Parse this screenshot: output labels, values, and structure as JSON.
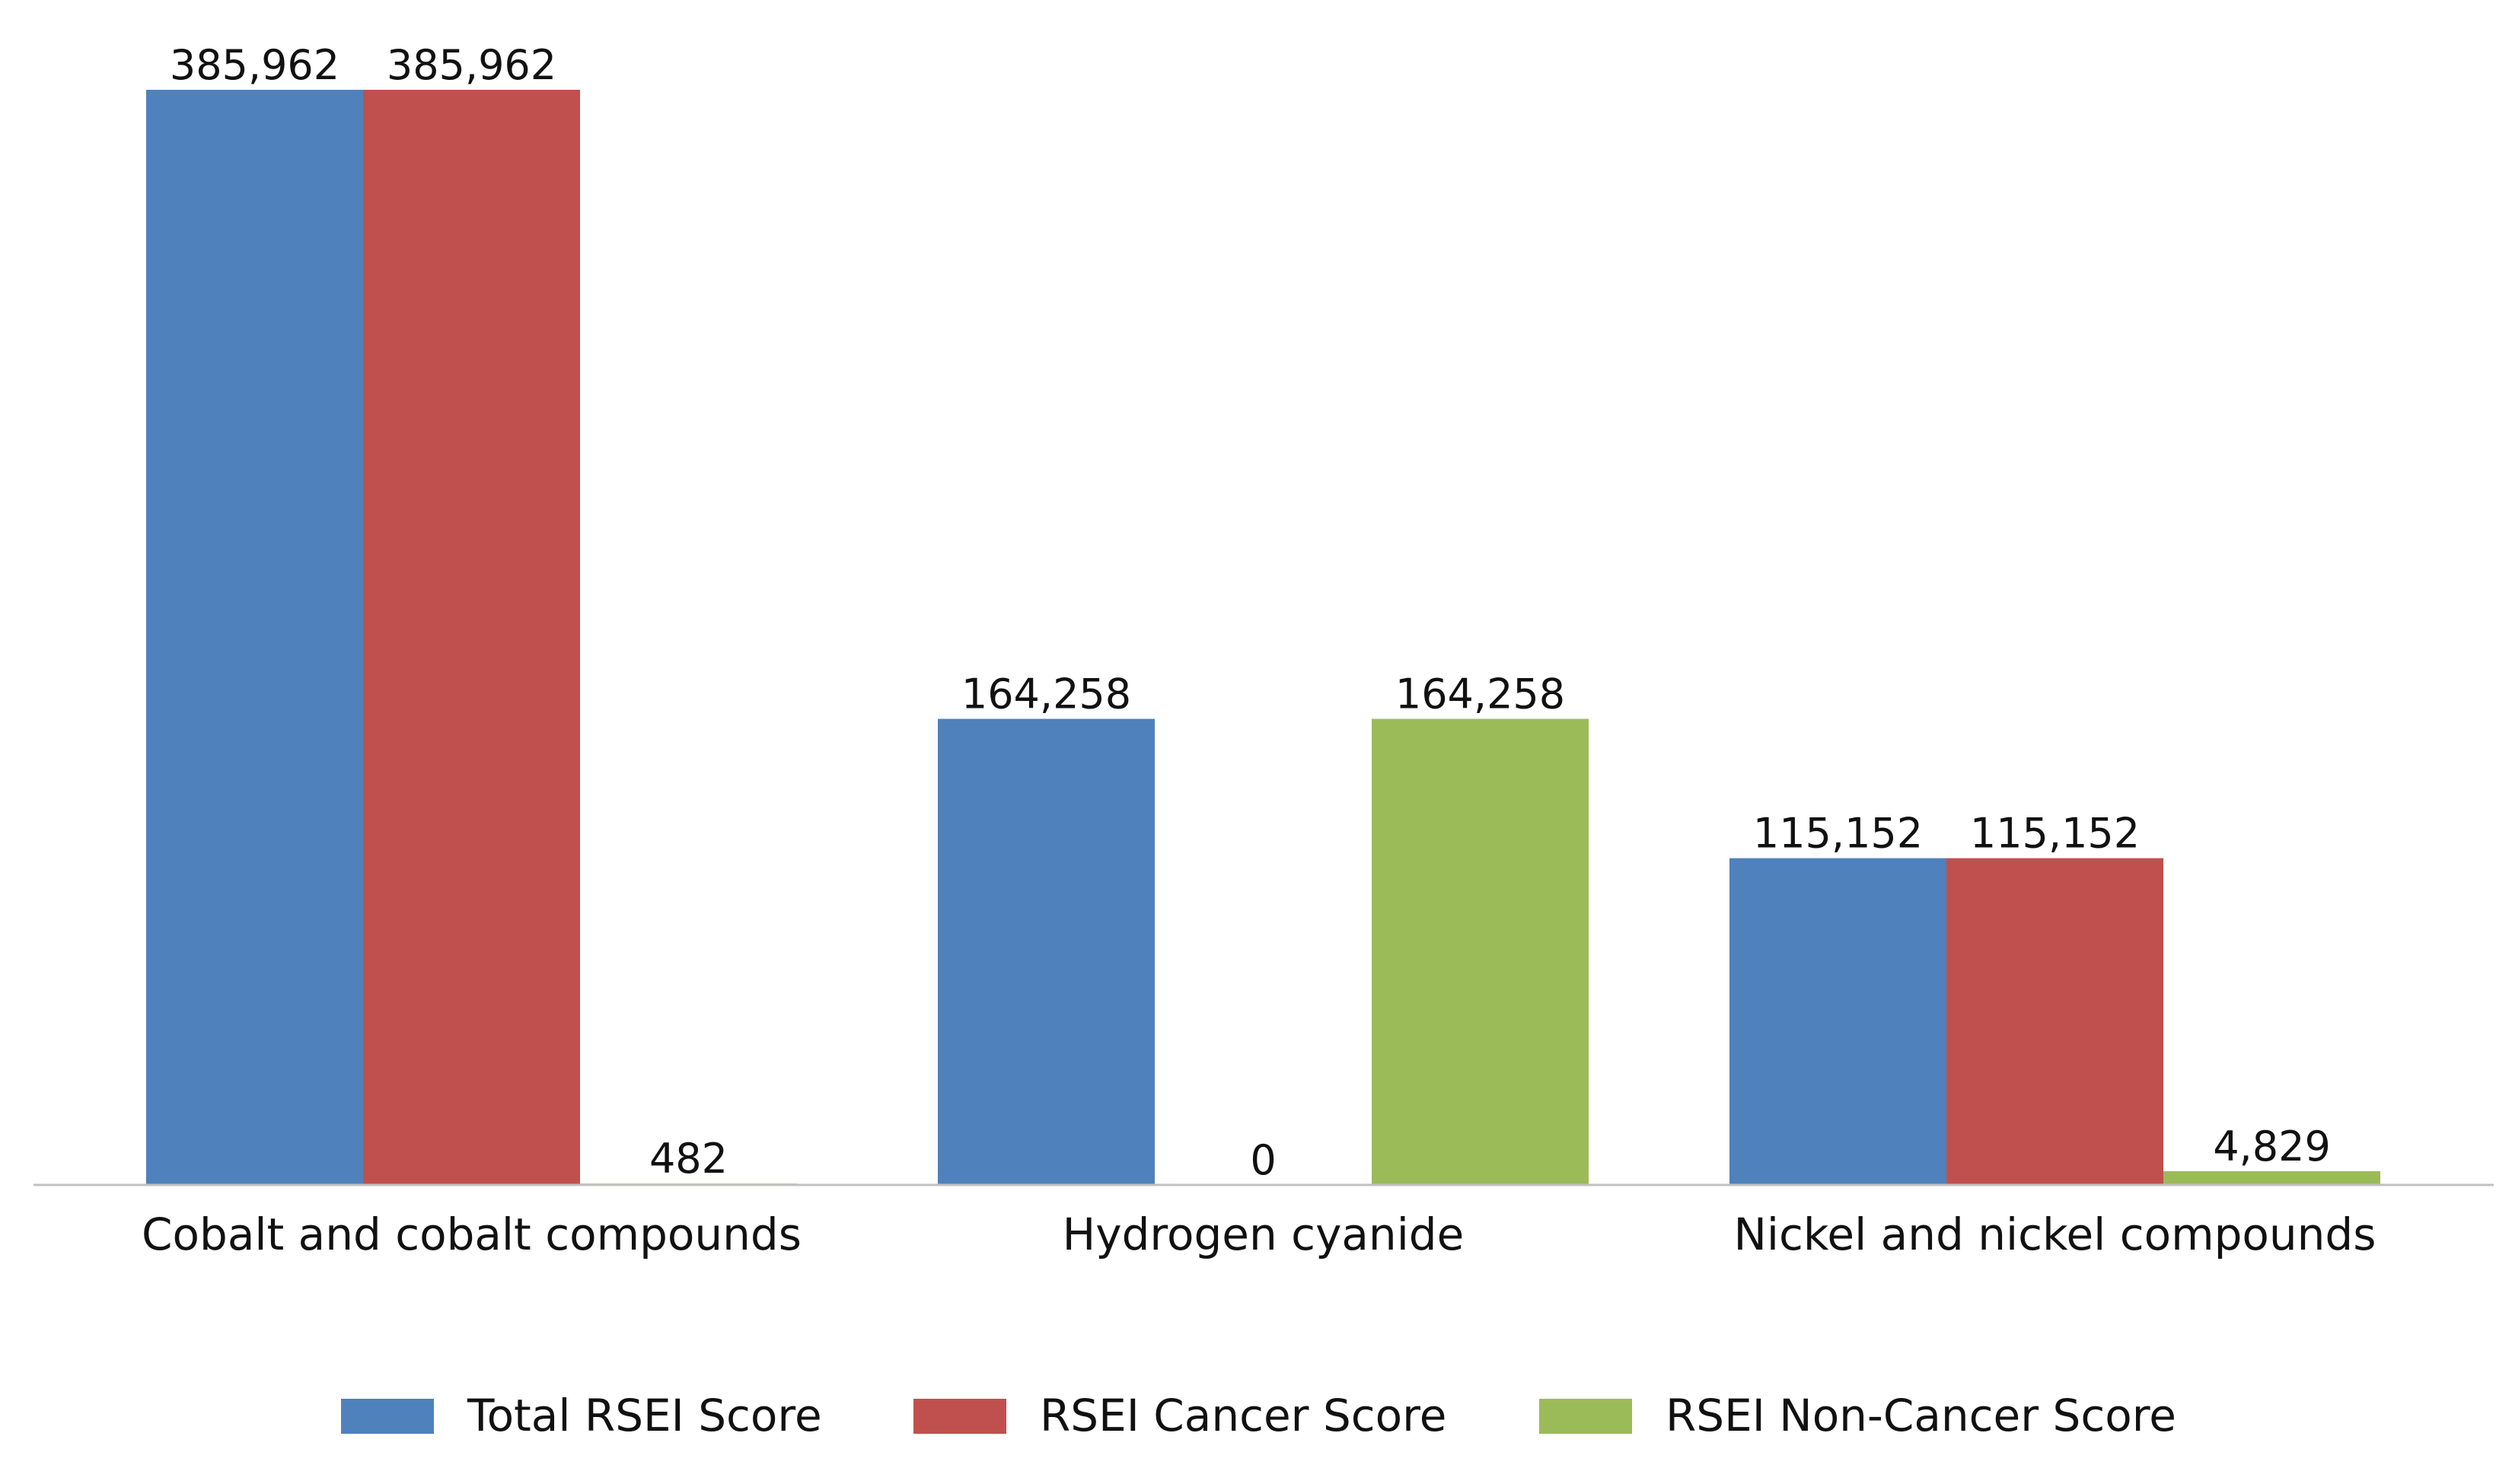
{
  "chart_data": {
    "type": "bar",
    "categories": [
      "Cobalt and cobalt compounds",
      "Hydrogen cyanide",
      "Nickel and nickel compounds"
    ],
    "series": [
      {
        "name": "Total RSEI Score",
        "color": "#4f81bd",
        "values": [
          385962,
          164258,
          115152
        ],
        "labels": [
          "385,962",
          "164,258",
          "115,152"
        ]
      },
      {
        "name": "RSEI Cancer Score",
        "color": "#c0504d",
        "values": [
          385962,
          0,
          115152
        ],
        "labels": [
          "385,962",
          "0",
          "115,152"
        ]
      },
      {
        "name": "RSEI Non-Cancer Score",
        "color": "#9bbb59",
        "values": [
          482,
          164258,
          4829
        ],
        "labels": [
          "482",
          "164,258",
          "4,829"
        ]
      }
    ],
    "title": "",
    "xlabel": "",
    "ylabel": "",
    "ylim": [
      0,
      385962
    ],
    "grid": false,
    "legend": "bottom"
  }
}
